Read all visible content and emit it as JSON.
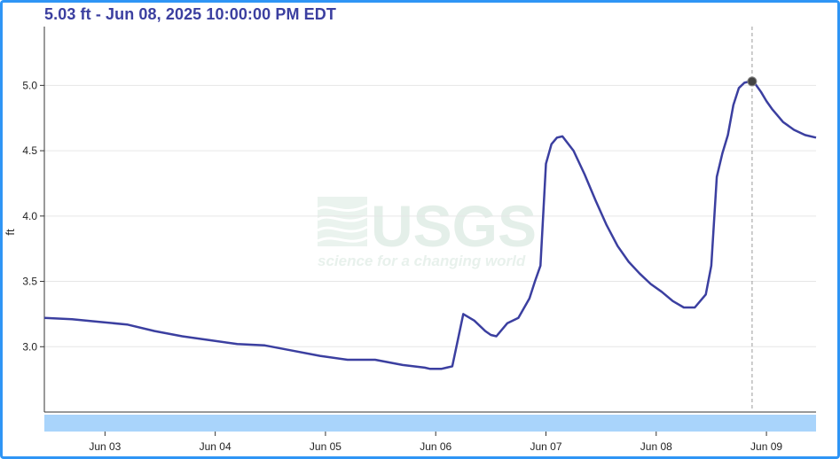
{
  "readout": "5.03 ft - Jun 08, 2025 10:00:00 PM EDT",
  "watermark": {
    "logo": "USGS",
    "tagline": "science for a changing world"
  },
  "colors": {
    "frame": "#2f95f5",
    "line": "#3b3fa0",
    "grid": "#e6e6e6",
    "brush": "#a9d4fb",
    "cursor": "#9a9a9a"
  },
  "chart_data": {
    "type": "line",
    "ylabel": "ft",
    "xlabel": "",
    "ylim": [
      2.5,
      5.45
    ],
    "y_ticks": [
      3.0,
      3.5,
      4.0,
      4.5,
      5.0
    ],
    "y_tick_labels": [
      "3.0",
      "3.5",
      "4.0",
      "4.5",
      "5.0"
    ],
    "x_ticks": [
      0.55,
      1.55,
      2.55,
      3.55,
      4.55,
      5.55,
      6.55
    ],
    "x_tick_labels": [
      "Jun 03",
      "Jun 04",
      "Jun 05",
      "Jun 06",
      "Jun 07",
      "Jun 08",
      "Jun 09"
    ],
    "x_unit": "days since Jun 02 12:00 AM",
    "xlim": [
      0.0,
      7.0
    ],
    "grid": true,
    "hover": {
      "x": 6.42,
      "y": 5.03
    },
    "series": [
      {
        "name": "",
        "x": [
          0.0,
          0.25,
          0.5,
          0.75,
          1.0,
          1.25,
          1.5,
          1.75,
          2.0,
          2.25,
          2.5,
          2.75,
          3.0,
          3.25,
          3.45,
          3.5,
          3.55,
          3.6,
          3.65,
          3.7,
          3.8,
          3.9,
          4.0,
          4.05,
          4.1,
          4.2,
          4.3,
          4.4,
          4.45,
          4.5,
          4.55,
          4.6,
          4.65,
          4.7,
          4.8,
          4.9,
          5.0,
          5.1,
          5.2,
          5.3,
          5.4,
          5.5,
          5.6,
          5.7,
          5.8,
          5.9,
          6.0,
          6.05,
          6.1,
          6.15,
          6.2,
          6.25,
          6.3,
          6.35,
          6.4,
          6.42,
          6.45,
          6.5,
          6.55,
          6.6,
          6.7,
          6.8,
          6.9,
          7.0
        ],
        "values": [
          3.22,
          3.21,
          3.19,
          3.17,
          3.12,
          3.08,
          3.05,
          3.02,
          3.01,
          2.97,
          2.93,
          2.9,
          2.9,
          2.86,
          2.84,
          2.83,
          2.83,
          2.83,
          2.84,
          2.85,
          3.25,
          3.2,
          3.12,
          3.09,
          3.08,
          3.18,
          3.22,
          3.37,
          3.5,
          3.62,
          4.4,
          4.55,
          4.6,
          4.61,
          4.5,
          4.32,
          4.12,
          3.93,
          3.77,
          3.65,
          3.56,
          3.48,
          3.42,
          3.35,
          3.3,
          3.3,
          3.4,
          3.62,
          4.3,
          4.48,
          4.62,
          4.85,
          4.98,
          5.02,
          5.03,
          5.03,
          5.01,
          4.95,
          4.88,
          4.82,
          4.72,
          4.66,
          4.62,
          4.6
        ]
      }
    ]
  }
}
